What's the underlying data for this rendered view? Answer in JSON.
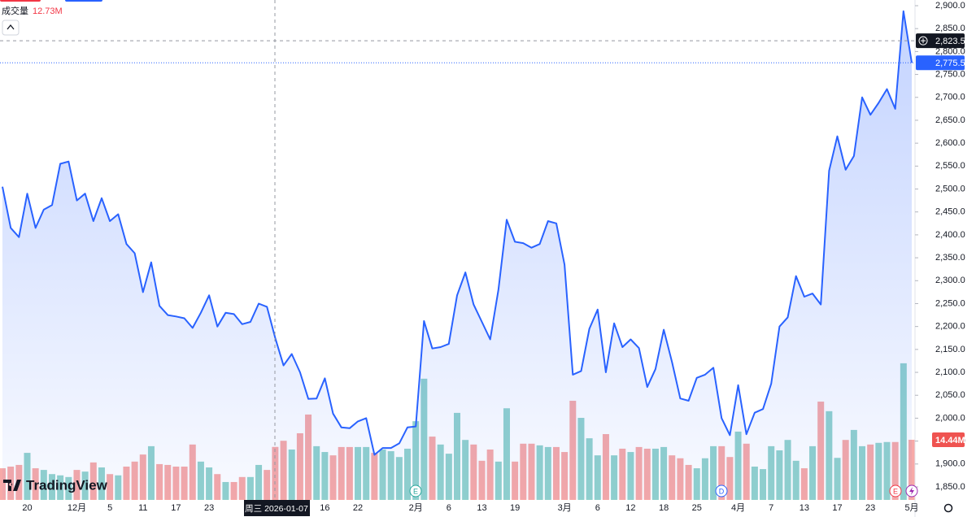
{
  "chart_data": {
    "type": "area",
    "categories": [
      null,
      null,
      null,
      "20",
      null,
      null,
      null,
      null,
      null,
      "12月",
      null,
      null,
      null,
      "5",
      null,
      null,
      null,
      "11",
      null,
      null,
      null,
      "17",
      null,
      null,
      null,
      "23",
      null,
      null,
      null,
      null,
      null,
      null,
      null,
      null,
      null,
      null,
      null,
      null,
      null,
      "16",
      null,
      null,
      null,
      "22",
      null,
      null,
      null,
      null,
      null,
      null,
      "2月",
      null,
      null,
      null,
      "6",
      null,
      null,
      null,
      "13",
      null,
      null,
      null,
      "19",
      null,
      null,
      null,
      null,
      null,
      "3月",
      null,
      null,
      null,
      "6",
      null,
      null,
      null,
      "12",
      null,
      null,
      null,
      "18",
      null,
      null,
      null,
      "25",
      null,
      null,
      null,
      null,
      "4月",
      null,
      null,
      null,
      "7",
      null,
      null,
      null,
      "13",
      null,
      null,
      null,
      "17",
      null,
      null,
      null,
      "23",
      null,
      null,
      null,
      null,
      "5月"
    ],
    "values": [
      2505,
      2415,
      2395,
      2490,
      2415,
      2455,
      2465,
      2555,
      2560,
      2475,
      2490,
      2430,
      2480,
      2430,
      2445,
      2380,
      2360,
      2275,
      2340,
      2245,
      2225,
      2222,
      2218,
      2197,
      2230,
      2268,
      2200,
      2230,
      2227,
      2205,
      2210,
      2250,
      2243,
      2175,
      2115,
      2140,
      2100,
      2042,
      2043,
      2087,
      2010,
      1980,
      1978,
      1993,
      2000,
      1920,
      1935,
      1935,
      1945,
      1980,
      1982,
      2212,
      2152,
      2155,
      2162,
      2268,
      2318,
      2248,
      2210,
      2172,
      2280,
      2433,
      2385,
      2382,
      2372,
      2380,
      2430,
      2425,
      2335,
      2095,
      2103,
      2195,
      2237,
      2100,
      2207,
      2155,
      2172,
      2153,
      2068,
      2107,
      2193,
      2122,
      2043,
      2038,
      2088,
      2095,
      2110,
      2000,
      1963,
      2072,
      1965,
      2012,
      2020,
      2075,
      2200,
      2220,
      2310,
      2265,
      2272,
      2248,
      2540,
      2615,
      2542,
      2572,
      2700,
      2662,
      2688,
      2718,
      2675,
      2888,
      2775.5
    ],
    "color": "#2962ff",
    "ylim": [
      1850,
      2900
    ],
    "yticks": [
      {
        "value": 1850,
        "label": "1,850.0"
      },
      {
        "value": 1900,
        "label": "1,900.0"
      },
      {
        "value": 1950,
        "label": "1,950.0"
      },
      {
        "value": 2000,
        "label": "2,000.0"
      },
      {
        "value": 2050,
        "label": "2,050.0"
      },
      {
        "value": 2100,
        "label": "2,100.0"
      },
      {
        "value": 2150,
        "label": "2,150.0"
      },
      {
        "value": 2200,
        "label": "2,200.0"
      },
      {
        "value": 2250,
        "label": "2,250.0"
      },
      {
        "value": 2300,
        "label": "2,300.0"
      },
      {
        "value": 2350,
        "label": "2,350.0"
      },
      {
        "value": 2400,
        "label": "2,400.0"
      },
      {
        "value": 2450,
        "label": "2,450.0"
      },
      {
        "value": 2500,
        "label": "2,500.0"
      },
      {
        "value": 2550,
        "label": "2,550.0"
      },
      {
        "value": 2600,
        "label": "2,600.0"
      },
      {
        "value": 2650,
        "label": "2,650.0"
      },
      {
        "value": 2700,
        "label": "2,700.0"
      },
      {
        "value": 2750,
        "label": "2,750.0"
      },
      {
        "value": 2800,
        "label": "2,800.0"
      },
      {
        "value": 2850,
        "label": "2,850.0"
      },
      {
        "value": 2900,
        "label": "2,900.0"
      }
    ],
    "last_label": "2,775.5",
    "crosshair": {
      "value": 2823.5,
      "label": "2,823.5",
      "date": "周三 2026-01-07"
    },
    "volume": {
      "title": "成交量",
      "legend_label": "12.73M",
      "values": [
        7.6,
        8.0,
        8.4,
        11.3,
        7.6,
        7.2,
        6.2,
        5.9,
        5.5,
        7.2,
        6.8,
        9.0,
        7.8,
        6.2,
        5.9,
        8.0,
        9.2,
        10.9,
        12.9,
        8.6,
        8.4,
        8.0,
        8.0,
        13.3,
        9.2,
        7.8,
        6.2,
        4.3,
        4.3,
        5.5,
        5.5,
        8.4,
        7.2,
        12.73,
        14.2,
        12.1,
        16.0,
        20.5,
        12.9,
        11.5,
        10.7,
        12.7,
        12.7,
        12.7,
        12.7,
        11.3,
        12.1,
        11.7,
        10.3,
        12.3,
        18.9,
        29.1,
        15.2,
        13.3,
        11.1,
        20.9,
        14.4,
        13.3,
        9.4,
        12.1,
        9.2,
        22.0,
        9.2,
        13.5,
        13.5,
        13.1,
        12.7,
        12.7,
        11.5,
        23.8,
        19.7,
        14.8,
        10.7,
        15.8,
        10.7,
        12.3,
        11.5,
        12.7,
        12.3,
        12.3,
        12.7,
        10.7,
        10.0,
        8.4,
        7.6,
        10.0,
        12.9,
        12.9,
        10.3,
        16.4,
        13.5,
        8.0,
        7.4,
        12.9,
        11.9,
        14.4,
        9.4,
        7.6,
        12.9,
        23.6,
        21.3,
        10.1,
        14.4,
        16.8,
        12.9,
        13.3,
        13.7,
        13.9,
        13.9,
        32.8,
        14.44
      ],
      "last_label": "14.44M",
      "ylim": [
        0,
        120
      ],
      "up_color": "#26a69a",
      "down_color": "#ef5350"
    },
    "events": [
      "E",
      "D",
      "E"
    ],
    "brand": "TradingView"
  }
}
